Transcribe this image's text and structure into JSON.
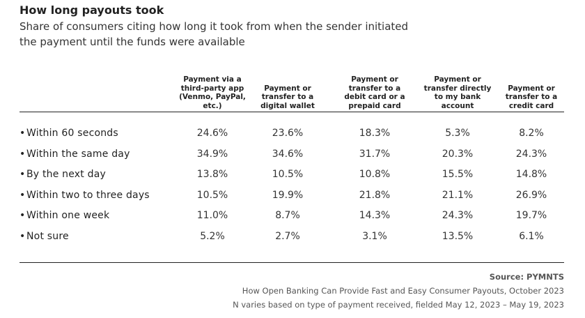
{
  "header": {
    "title": "How long payouts took",
    "subtitle": "Share of consumers citing how long it took from when the sender initiated the payment until the funds were available"
  },
  "table": {
    "columns": [
      "Payment via a third-party app (Venmo, PayPal, etc.)",
      "Payment or transfer to a digital wallet",
      "Payment or transfer to a debit card or a prepaid card",
      "Payment or transfer directly to my bank account",
      "Payment or transfer to a credit card"
    ],
    "rows": [
      {
        "label": "Within 60 seconds",
        "values": [
          "24.6%",
          "23.6%",
          "18.3%",
          "5.3%",
          "8.2%"
        ]
      },
      {
        "label": "Within the same day",
        "values": [
          "34.9%",
          "34.6%",
          "31.7%",
          "20.3%",
          "24.3%"
        ]
      },
      {
        "label": "By the next day",
        "values": [
          "13.8%",
          "10.5%",
          "10.8%",
          "15.5%",
          "14.8%"
        ]
      },
      {
        "label": "Within two to three days",
        "values": [
          "10.5%",
          "19.9%",
          "21.8%",
          "21.1%",
          "26.9%"
        ]
      },
      {
        "label": "Within one week",
        "values": [
          "11.0%",
          "8.7%",
          "14.3%",
          "24.3%",
          "19.7%"
        ]
      },
      {
        "label": "Not sure",
        "values": [
          "5.2%",
          "2.7%",
          "3.1%",
          "13.5%",
          "6.1%"
        ]
      }
    ]
  },
  "footer": {
    "source": "Source: PYMNTS",
    "notes": [
      "How Open Banking Can Provide Fast and Easy Consumer Payouts, October 2023",
      "N varies based on type of payment received, fielded May 12, 2023 – May 19, 2023"
    ]
  }
}
